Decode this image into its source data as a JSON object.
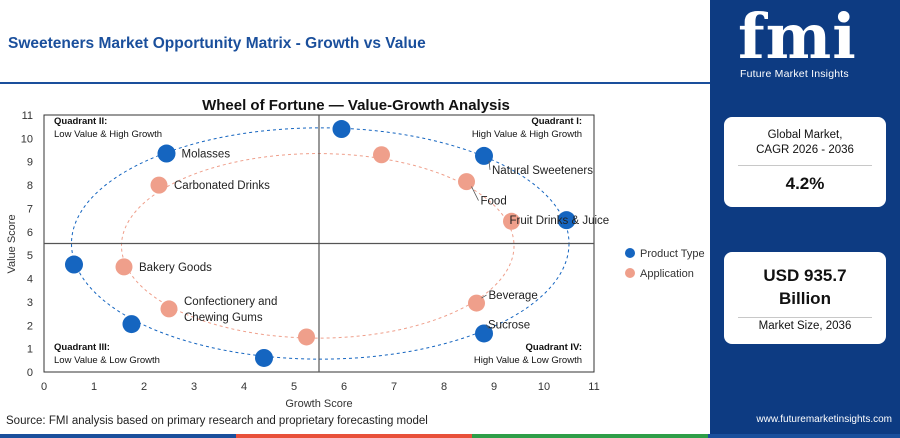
{
  "header": {
    "title": "Sweeteners Market Opportunity Matrix - Growth vs Value"
  },
  "footer": {
    "source": "Source: FMI analysis based on primary research and proprietary forecasting model"
  },
  "sidebar": {
    "logo_text": "fmi",
    "logo_subtitle": "Future Market Insights",
    "cagr_label_line1": "Global Market,",
    "cagr_label_line2": "CAGR 2026 - 2036",
    "cagr_value": "4.2%",
    "size_value_line1": "USD 935.7",
    "size_value_line2": "Billion",
    "size_label": "Market Size, 2036",
    "url": "www.futuremarketinsights.com"
  },
  "colors": {
    "brand_blue": "#0d3b82",
    "title_blue": "#1a4f9c",
    "product_type": "#1565c0",
    "application": "#ef9f8b",
    "bottom_bar": [
      "#1a4f9c",
      "#e8503a",
      "#2e9e48",
      "#1a4f9c"
    ]
  },
  "chart_data": {
    "type": "scatter",
    "title": "Wheel of Fortune — Value-Growth Analysis",
    "xlabel": "Growth Score",
    "ylabel": "Value Score",
    "xlim": [
      0,
      11
    ],
    "ylim": [
      0,
      11
    ],
    "xticks": [
      0,
      1,
      2,
      3,
      4,
      5,
      6,
      7,
      8,
      9,
      10,
      11
    ],
    "yticks": [
      0,
      1,
      2,
      3,
      4,
      5,
      6,
      7,
      8,
      9,
      10,
      11
    ],
    "divider_x": 5.5,
    "divider_y": 5.5,
    "quadrants": [
      {
        "name": "Quadrant II:",
        "desc": "Low Value & High Growth",
        "position": "top-left"
      },
      {
        "name": "Quadrant I:",
        "desc": "High Value & High Growth",
        "position": "top-right"
      },
      {
        "name": "Quadrant III:",
        "desc": "Low Value & Low Growth",
        "position": "bottom-left"
      },
      {
        "name": "Quadrant IV:",
        "desc": "High Value & Low Growth",
        "position": "bottom-right"
      }
    ],
    "legend": {
      "position": "right",
      "entries": [
        "Product Type",
        "Application"
      ]
    },
    "series": [
      {
        "name": "Product Type",
        "points": [
          {
            "x": 5.95,
            "y": 10.4,
            "label": ""
          },
          {
            "x": 2.45,
            "y": 9.35,
            "label": "Molasses"
          },
          {
            "x": 8.8,
            "y": 9.25,
            "label": "Natural Sweeteners"
          },
          {
            "x": 10.45,
            "y": 6.5,
            "label": "Fruit Drinks & Juice"
          },
          {
            "x": 0.6,
            "y": 4.6,
            "label": ""
          },
          {
            "x": 1.75,
            "y": 2.05,
            "label": ""
          },
          {
            "x": 8.8,
            "y": 1.65,
            "label": "Sucrose"
          },
          {
            "x": 4.4,
            "y": 0.6,
            "label": ""
          }
        ]
      },
      {
        "name": "Application",
        "points": [
          {
            "x": 6.75,
            "y": 9.3,
            "label": ""
          },
          {
            "x": 2.3,
            "y": 8.0,
            "label": "Carbonated Drinks"
          },
          {
            "x": 8.45,
            "y": 8.15,
            "label": "Food"
          },
          {
            "x": 9.35,
            "y": 6.45,
            "label": ""
          },
          {
            "x": 1.6,
            "y": 4.5,
            "label": "Bakery Goods"
          },
          {
            "x": 2.5,
            "y": 2.7,
            "label": "Confectionery and|Chewing Gums"
          },
          {
            "x": 8.65,
            "y": 2.95,
            "label": "Beverage"
          },
          {
            "x": 5.25,
            "y": 1.5,
            "label": ""
          }
        ]
      }
    ]
  }
}
